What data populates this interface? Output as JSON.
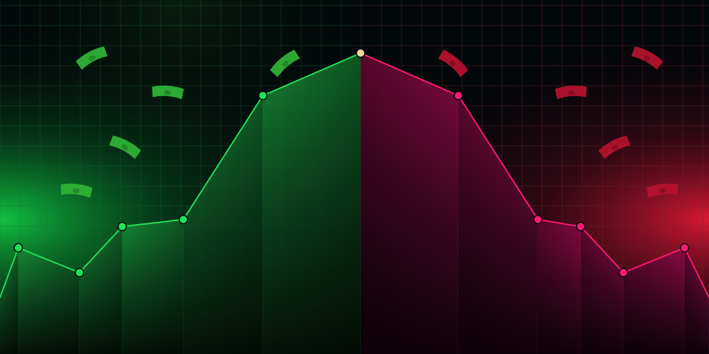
{
  "colors": {
    "background": "#02070a",
    "up_accent": "#22e05a",
    "down_accent": "#ff1a72",
    "peak_point": "#f3d7a0",
    "up_fill_top": "#168a37",
    "down_fill_top": "#8c0a44",
    "up_glow": "#13e34a",
    "down_glow": "#ff1a3a",
    "up_grid": "#1a6a34",
    "down_grid": "#6a2a2a",
    "up_bill": "#2fb236",
    "down_bill": "#b3122e"
  },
  "chart_data": {
    "type": "area",
    "title": "",
    "xlabel": "",
    "ylabel": "",
    "grid": true,
    "legend": "none",
    "x": [
      -0.3,
      0,
      1,
      1.7,
      2.7,
      4,
      5.6,
      7.2,
      8.5,
      9.2,
      9.9,
      10.9,
      11.3
    ],
    "ylim": [
      0,
      100
    ],
    "series": [
      {
        "values": [
          16,
          30,
          23,
          36,
          38,
          73,
          85,
          73,
          38,
          36,
          23,
          30,
          16
        ]
      }
    ],
    "peak_index": 6
  },
  "decor": {
    "bills": [
      {
        "side": "up",
        "icon": "banknote-icon"
      },
      {
        "side": "up",
        "icon": "banknote-icon"
      },
      {
        "side": "up",
        "icon": "banknote-icon"
      },
      {
        "side": "up",
        "icon": "banknote-icon"
      },
      {
        "side": "up",
        "icon": "banknote-icon"
      },
      {
        "side": "down",
        "icon": "banknote-icon"
      },
      {
        "side": "down",
        "icon": "banknote-icon"
      },
      {
        "side": "down",
        "icon": "banknote-icon"
      },
      {
        "side": "down",
        "icon": "banknote-icon"
      },
      {
        "side": "down",
        "icon": "banknote-icon"
      }
    ]
  }
}
